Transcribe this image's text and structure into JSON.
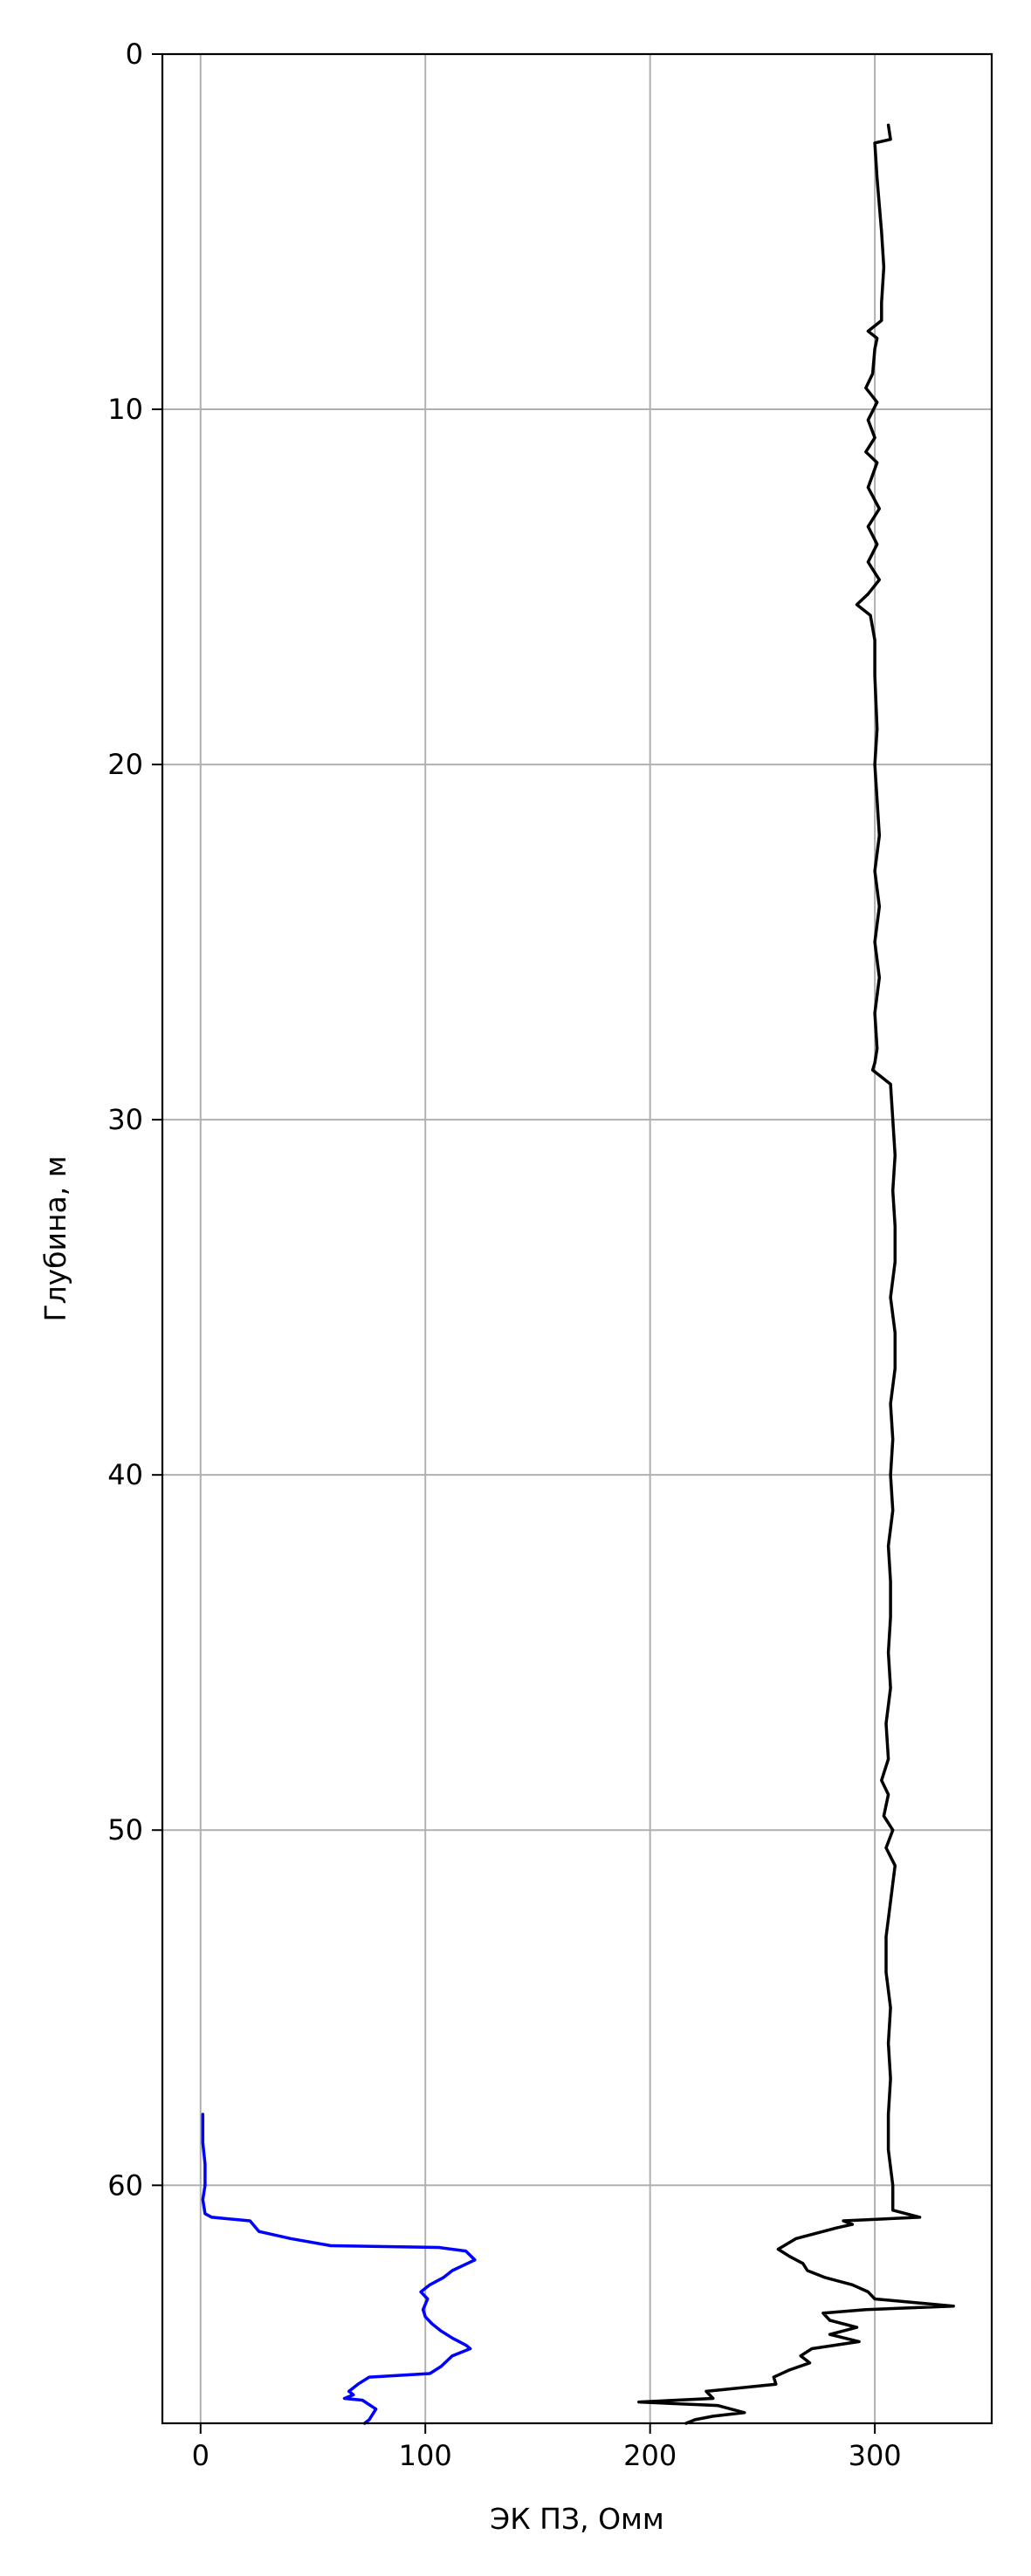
{
  "chart_data": {
    "type": "line",
    "title": "",
    "xlabel": "ЭК ПЗ, Омм",
    "ylabel": "Глубина, м",
    "xlim": [
      -17,
      352
    ],
    "ylim": [
      66.7,
      0
    ],
    "y_inverted": true,
    "grid": true,
    "x_ticks": [
      0,
      100,
      200,
      300
    ],
    "y_ticks": [
      0,
      10,
      20,
      30,
      40,
      50,
      60
    ],
    "x_tick_labels": [
      "0",
      "100",
      "200",
      "300"
    ],
    "y_tick_labels": [
      "0",
      "10",
      "20",
      "30",
      "40",
      "50",
      "60"
    ],
    "series": [
      {
        "color": "#0000ff",
        "points": [
          [
            1,
            58.0
          ],
          [
            1,
            58.8
          ],
          [
            2,
            59.4
          ],
          [
            2,
            60.0
          ],
          [
            1,
            60.4
          ],
          [
            2,
            60.8
          ],
          [
            5,
            60.9
          ],
          [
            22,
            61.0
          ],
          [
            26,
            61.3
          ],
          [
            40,
            61.5
          ],
          [
            58,
            61.7
          ],
          [
            106,
            61.75
          ],
          [
            118,
            61.85
          ],
          [
            122,
            62.1
          ],
          [
            112,
            62.4
          ],
          [
            108,
            62.6
          ],
          [
            102,
            62.8
          ],
          [
            98,
            63.0
          ],
          [
            101,
            63.2
          ],
          [
            99,
            63.5
          ],
          [
            100,
            63.7
          ],
          [
            103,
            63.9
          ],
          [
            107,
            64.1
          ],
          [
            112,
            64.3
          ],
          [
            118,
            64.5
          ],
          [
            120,
            64.6
          ],
          [
            112,
            64.8
          ],
          [
            107,
            65.1
          ],
          [
            102,
            65.3
          ],
          [
            75,
            65.4
          ],
          [
            70,
            65.6
          ],
          [
            66,
            65.8
          ],
          [
            68,
            65.9
          ],
          [
            64,
            66.0
          ],
          [
            72,
            66.05
          ],
          [
            78,
            66.3
          ],
          [
            75,
            66.6
          ],
          [
            73,
            66.7
          ]
        ]
      },
      {
        "color": "#000000",
        "points": [
          [
            306,
            2.0
          ],
          [
            307,
            2.4
          ],
          [
            300,
            2.5
          ],
          [
            301,
            3.5
          ],
          [
            303,
            5.0
          ],
          [
            304,
            6.0
          ],
          [
            303,
            7.0
          ],
          [
            303,
            7.5
          ],
          [
            297,
            7.8
          ],
          [
            301,
            8.0
          ],
          [
            300,
            8.3
          ],
          [
            299,
            9.0
          ],
          [
            296,
            9.4
          ],
          [
            301,
            9.8
          ],
          [
            297,
            10.3
          ],
          [
            300,
            10.8
          ],
          [
            296,
            11.2
          ],
          [
            301,
            11.5
          ],
          [
            297,
            12.2
          ],
          [
            302,
            12.8
          ],
          [
            297,
            13.3
          ],
          [
            301,
            13.8
          ],
          [
            297,
            14.3
          ],
          [
            302,
            14.8
          ],
          [
            297,
            15.2
          ],
          [
            292,
            15.5
          ],
          [
            298,
            15.8
          ],
          [
            300,
            16.5
          ],
          [
            300,
            17.5
          ],
          [
            301,
            19.0
          ],
          [
            300,
            20.0
          ],
          [
            302,
            22.0
          ],
          [
            300,
            23.0
          ],
          [
            302,
            24.0
          ],
          [
            300,
            25.0
          ],
          [
            302,
            26.0
          ],
          [
            300,
            27.0
          ],
          [
            301,
            28.0
          ],
          [
            300,
            28.4
          ],
          [
            299,
            28.6
          ],
          [
            303,
            28.8
          ],
          [
            307,
            29.0
          ],
          [
            308,
            30.0
          ],
          [
            309,
            31.0
          ],
          [
            308,
            32.0
          ],
          [
            309,
            33.0
          ],
          [
            309,
            34.0
          ],
          [
            307,
            35.0
          ],
          [
            309,
            36.0
          ],
          [
            309,
            37.0
          ],
          [
            307,
            38.0
          ],
          [
            308,
            39.0
          ],
          [
            307,
            40.0
          ],
          [
            308,
            41.0
          ],
          [
            306,
            42.0
          ],
          [
            307,
            43.0
          ],
          [
            307,
            44.0
          ],
          [
            306,
            45.0
          ],
          [
            307,
            46.0
          ],
          [
            305,
            47.0
          ],
          [
            306,
            48.0
          ],
          [
            303,
            48.6
          ],
          [
            306,
            49.0
          ],
          [
            304,
            49.6
          ],
          [
            308,
            50.0
          ],
          [
            305,
            50.5
          ],
          [
            309,
            51.0
          ],
          [
            308,
            51.5
          ],
          [
            306,
            52.5
          ],
          [
            305,
            53.0
          ],
          [
            305,
            54.0
          ],
          [
            307,
            55.0
          ],
          [
            306,
            56.0
          ],
          [
            307,
            57.0
          ],
          [
            306,
            58.0
          ],
          [
            306,
            59.0
          ],
          [
            308,
            60.0
          ],
          [
            308,
            60.7
          ],
          [
            320,
            60.9
          ],
          [
            286,
            61.0
          ],
          [
            290,
            61.1
          ],
          [
            283,
            61.2
          ],
          [
            265,
            61.5
          ],
          [
            257,
            61.8
          ],
          [
            262,
            62.0
          ],
          [
            268,
            62.2
          ],
          [
            270,
            62.4
          ],
          [
            278,
            62.6
          ],
          [
            290,
            62.8
          ],
          [
            297,
            63.0
          ],
          [
            300,
            63.2
          ],
          [
            335,
            63.4
          ],
          [
            296,
            63.5
          ],
          [
            277,
            63.6
          ],
          [
            280,
            63.8
          ],
          [
            292,
            64.0
          ],
          [
            280,
            64.2
          ],
          [
            293,
            64.4
          ],
          [
            272,
            64.6
          ],
          [
            267,
            64.8
          ],
          [
            271,
            65.0
          ],
          [
            262,
            65.2
          ],
          [
            255,
            65.4
          ],
          [
            256,
            65.6
          ],
          [
            225,
            65.8
          ],
          [
            228,
            66.0
          ],
          [
            195,
            66.1
          ],
          [
            230,
            66.2
          ],
          [
            242,
            66.4
          ],
          [
            228,
            66.5
          ],
          [
            220,
            66.6
          ],
          [
            216,
            66.7
          ]
        ]
      }
    ]
  }
}
